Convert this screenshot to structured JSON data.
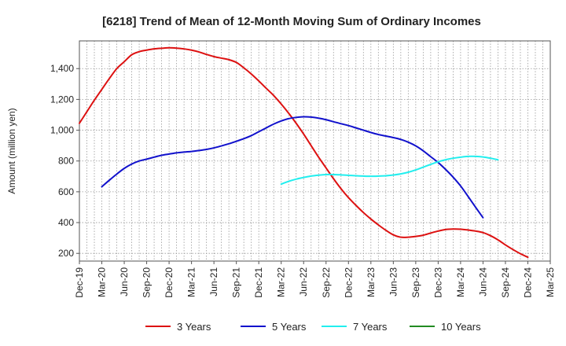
{
  "chart_data": {
    "type": "line",
    "title": "[6218]  Trend of Mean of 12-Month Moving Sum of Ordinary Incomes",
    "xlabel": "",
    "ylabel": "Amount (million yen)",
    "ylim": [
      150,
      1580
    ],
    "yticks": [
      200,
      400,
      600,
      800,
      1000,
      1200,
      1400
    ],
    "ytick_labels": [
      "200",
      "400",
      "600",
      "800",
      "1,000",
      "1,200",
      "1,400"
    ],
    "grid": true,
    "legend_position": "bottom",
    "x_months": [
      "Dec-19",
      "Jan-20",
      "Feb-20",
      "Mar-20",
      "Apr-20",
      "May-20",
      "Jun-20",
      "Jul-20",
      "Aug-20",
      "Sep-20",
      "Oct-20",
      "Nov-20",
      "Dec-20",
      "Jan-21",
      "Feb-21",
      "Mar-21",
      "Apr-21",
      "May-21",
      "Jun-21",
      "Jul-21",
      "Aug-21",
      "Sep-21",
      "Oct-21",
      "Nov-21",
      "Dec-21",
      "Jan-22",
      "Feb-22",
      "Mar-22",
      "Apr-22",
      "May-22",
      "Jun-22",
      "Jul-22",
      "Aug-22",
      "Sep-22",
      "Oct-22",
      "Nov-22",
      "Dec-22",
      "Jan-23",
      "Feb-23",
      "Mar-23",
      "Apr-23",
      "May-23",
      "Jun-23",
      "Jul-23",
      "Aug-23",
      "Sep-23",
      "Oct-23",
      "Nov-23",
      "Dec-23",
      "Jan-24",
      "Feb-24",
      "Mar-24",
      "Apr-24",
      "May-24",
      "Jun-24",
      "Jul-24",
      "Aug-24",
      "Sep-24",
      "Oct-24",
      "Nov-24",
      "Dec-24",
      "Jan-25",
      "Feb-25",
      "Mar-25"
    ],
    "x_tick_labels": [
      "Dec-19",
      "Mar-20",
      "Jun-20",
      "Sep-20",
      "Dec-20",
      "Mar-21",
      "Jun-21",
      "Sep-21",
      "Dec-21",
      "Mar-22",
      "Jun-22",
      "Sep-22",
      "Dec-22",
      "Mar-23",
      "Jun-23",
      "Sep-23",
      "Dec-23",
      "Mar-24",
      "Jun-24",
      "Sep-24",
      "Dec-24",
      "Mar-25"
    ],
    "series": [
      {
        "name": "3 Years",
        "color": "#dd1111",
        "start_index": 0,
        "values": [
          1045,
          1120,
          1195,
          1265,
          1335,
          1400,
          1445,
          1490,
          1510,
          1520,
          1528,
          1532,
          1535,
          1533,
          1528,
          1520,
          1508,
          1492,
          1478,
          1468,
          1458,
          1440,
          1405,
          1365,
          1320,
          1272,
          1225,
          1170,
          1110,
          1045,
          975,
          900,
          825,
          755,
          685,
          620,
          562,
          512,
          465,
          423,
          385,
          350,
          320,
          305,
          305,
          310,
          318,
          332,
          345,
          355,
          358,
          357,
          352,
          345,
          335,
          315,
          288,
          255,
          225,
          198,
          175
        ],
        "dense": true
      },
      {
        "name": "5 Years",
        "color": "#1111cc",
        "start_index": 3,
        "values": [
          633,
          675,
          715,
          752,
          780,
          800,
          812,
          825,
          837,
          845,
          853,
          858,
          862,
          868,
          875,
          885,
          898,
          912,
          928,
          945,
          965,
          990,
          1015,
          1040,
          1060,
          1075,
          1083,
          1087,
          1085,
          1078,
          1068,
          1055,
          1042,
          1030,
          1015,
          1000,
          985,
          972,
          962,
          952,
          940,
          922,
          898,
          866,
          828,
          790,
          745,
          695,
          638,
          570,
          500,
          432
        ],
        "dense": true
      },
      {
        "name": "7 Years",
        "color": "#22eeee",
        "start_index": 27,
        "values": [
          650,
          668,
          682,
          693,
          702,
          708,
          712,
          712,
          710,
          707,
          704,
          702,
          701,
          702,
          704,
          709,
          716,
          727,
          742,
          760,
          778,
          795,
          808,
          818,
          825,
          830,
          830,
          826,
          818,
          808
        ],
        "dense": true
      },
      {
        "name": "10 Years",
        "color": "#228b22",
        "start_index": 0,
        "values": [],
        "dense": false
      }
    ]
  }
}
